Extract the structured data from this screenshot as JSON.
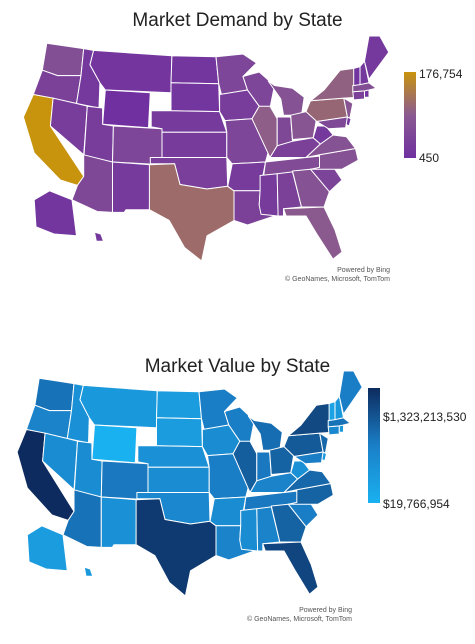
{
  "maps": [
    {
      "title": "Market Demand by State",
      "legend": {
        "max_label": "176,754",
        "min_label": "450",
        "color_max": "#c8940e",
        "color_mid": "#8a5a90",
        "color_min": "#7030a0"
      },
      "attribution": {
        "powered_by": "Powered by Bing",
        "credits": "© GeoNames, Microsoft, TomTom"
      },
      "states": {
        "CA": 176754,
        "TX": 75000,
        "PA": 65000,
        "NY": 55000,
        "IL": 50000,
        "FL": 45000,
        "OH": 35000,
        "NJ": 35000,
        "MI": 30000,
        "GA": 30000,
        "NC": 30000,
        "VA": 30000,
        "WA": 25000,
        "MA": 25000,
        "TN": 20000,
        "AZ": 15000,
        "IN": 15000,
        "MD": 15000,
        "MO": 12000,
        "WI": 12000,
        "CO": 12000,
        "MN": 12000,
        "SC": 10000,
        "AL": 8000,
        "LA": 8000,
        "KY": 8000,
        "OR": 8000,
        "OK": 6000,
        "CT": 8000,
        "UT": 5000,
        "IA": 5000,
        "NV": 5000,
        "AR": 4000,
        "MS": 4000,
        "KS": 4000,
        "NM": 3000,
        "NE": 3000,
        "ID": 2000,
        "WV": 2000,
        "HI": 2000,
        "NH": 2000,
        "ME": 2000,
        "MT": 1500,
        "RI": 1500,
        "DE": 1500,
        "SD": 1000,
        "ND": 1000,
        "AK": 1000,
        "VT": 800,
        "WY": 450
      }
    },
    {
      "title": "Market Value by State",
      "legend": {
        "max_label": "$1,323,213,530",
        "min_label": "$19,766,954",
        "color_max": "#0d2b5e",
        "color_mid": "#1a7fc7",
        "color_min": "#1ab1f0"
      },
      "attribution": {
        "powered_by": "Powered by Bing",
        "credits": "© GeoNames, Microsoft, TomTom"
      },
      "states": {
        "CA": 1323213530,
        "TX": 1100000000,
        "FL": 950000000,
        "NY": 900000000,
        "PA": 700000000,
        "IL": 650000000,
        "OH": 600000000,
        "GA": 600000000,
        "NC": 600000000,
        "NJ": 550000000,
        "VA": 550000000,
        "MI": 500000000,
        "WA": 450000000,
        "MA": 450000000,
        "AZ": 450000000,
        "TN": 400000000,
        "IN": 400000000,
        "MO": 350000000,
        "MD": 350000000,
        "WI": 350000000,
        "CO": 400000000,
        "MN": 350000000,
        "SC": 350000000,
        "AL": 300000000,
        "LA": 300000000,
        "KY": 300000000,
        "OR": 300000000,
        "OK": 250000000,
        "CT": 250000000,
        "UT": 200000000,
        "IA": 200000000,
        "NV": 200000000,
        "AR": 200000000,
        "MS": 200000000,
        "KS": 200000000,
        "NM": 150000000,
        "NE": 150000000,
        "ID": 150000000,
        "WV": 150000000,
        "HI": 100000000,
        "NH": 100000000,
        "ME": 350000000,
        "MT": 100000000,
        "RI": 100000000,
        "DE": 100000000,
        "SD": 80000000,
        "ND": 80000000,
        "AK": 80000000,
        "VT": 50000000,
        "WY": 19766954
      }
    }
  ]
}
